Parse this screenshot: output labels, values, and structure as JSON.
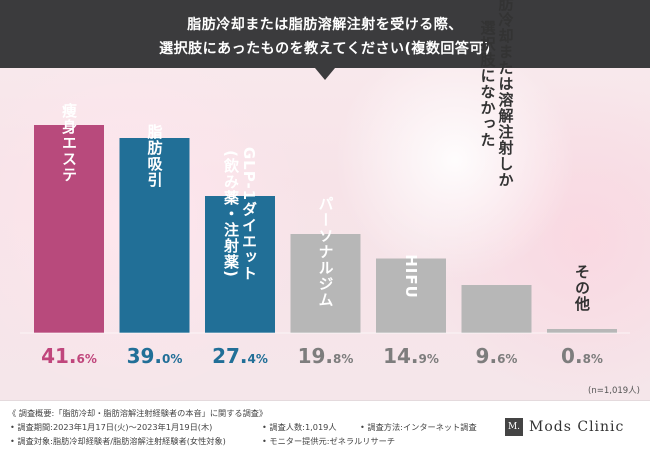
{
  "header": {
    "line1": "脂肪冷却または脂肪溶解注射を受ける際、",
    "line2": "選択肢にあったものを教えてください(複数回答可)"
  },
  "colors": {
    "header_bg": "#3b3b3d",
    "bar_pink": "#b84a7c",
    "bar_blue": "#216f97",
    "bar_gray": "#b7b7b7",
    "value_pink": "#c0467c",
    "value_blue": "#216f97",
    "value_gray": "#7d7d7d"
  },
  "chart_data": {
    "type": "bar",
    "categories": [
      "痩身エステ",
      "脂肪吸引",
      "GLP-1ダイエット(飲み薬・注射薬)",
      "パーソナルジム",
      "HIFU",
      "脂肪冷却または溶解注射しか選択肢になかった",
      "その他"
    ],
    "label_columns": [
      [
        "痩身エステ"
      ],
      [
        "脂肪吸引"
      ],
      [
        "GLP-1ダイエット",
        "(飲み薬・注射薬)"
      ],
      [
        "パーソナルジム"
      ],
      [
        "HIFU"
      ],
      [
        "脂肪冷却または溶解注射しか",
        "選択肢になかった"
      ],
      [
        "その他"
      ]
    ],
    "values": [
      41.6,
      39.0,
      27.4,
      19.8,
      14.9,
      9.6,
      0.8
    ],
    "value_labels": [
      [
        "41.",
        "6%"
      ],
      [
        "39.",
        "0%"
      ],
      [
        "27.",
        "4%"
      ],
      [
        "19.",
        "8%"
      ],
      [
        "14.",
        "9%"
      ],
      [
        "9.",
        "6%"
      ],
      [
        "0.",
        "8%"
      ]
    ],
    "bar_colors": [
      "pink",
      "blue",
      "blue",
      "gray",
      "gray",
      "gray",
      "gray"
    ],
    "label_on_bar": [
      true,
      true,
      true,
      true,
      true,
      false,
      false
    ],
    "ylim": [
      0,
      41.6
    ],
    "grid": false,
    "note": "(n=1,019人)"
  },
  "footer": {
    "overview": "《 調査概要:「脂肪冷却・脂肪溶解注射経験者の本音」に関する調査》",
    "period": "• 調査期間:2023年1月17日(火)〜2023年1月19日(木)",
    "people": "• 調査人数:1,019人",
    "method": "• 調査方法:インターネット調査",
    "target": "• 調査対象:脂肪冷却経験者/脂肪溶解注射経験者(女性対象)",
    "provider": "• モニター提供元:ゼネラルリサーチ",
    "logo_mark": "M.",
    "logo_text": "Mods Clinic"
  }
}
